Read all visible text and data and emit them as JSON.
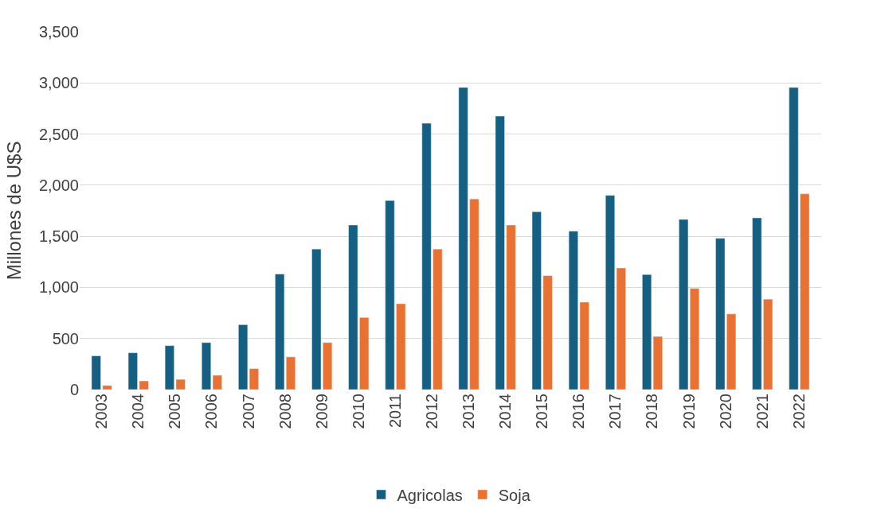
{
  "chart_data": {
    "type": "bar",
    "ylabel": "Millones de U$S",
    "categories": [
      "2003",
      "2004",
      "2005",
      "2006",
      "2007",
      "2008",
      "2009",
      "2010",
      "2011",
      "2012",
      "2013",
      "2014",
      "2015",
      "2016",
      "2017",
      "2018",
      "2019",
      "2020",
      "2021",
      "2022"
    ],
    "series": [
      {
        "name": "Agricolas",
        "color": "#156082",
        "values": [
          330,
          360,
          430,
          460,
          635,
          1130,
          1375,
          1610,
          1850,
          2605,
          2955,
          2675,
          1740,
          1550,
          1900,
          1125,
          1665,
          1480,
          1680,
          2955
        ]
      },
      {
        "name": "Soja",
        "color": "#e97132",
        "values": [
          40,
          85,
          100,
          140,
          205,
          320,
          460,
          705,
          840,
          1375,
          1865,
          1610,
          1115,
          855,
          1190,
          520,
          990,
          740,
          885,
          1915
        ]
      }
    ],
    "ylim": [
      0,
      3500
    ],
    "yticks": [
      {
        "value": 0,
        "label": "0"
      },
      {
        "value": 500,
        "label": "500"
      },
      {
        "value": 1000,
        "label": "1,000"
      },
      {
        "value": 1500,
        "label": "1,500"
      },
      {
        "value": 2000,
        "label": "2,000"
      },
      {
        "value": 2500,
        "label": "2,500"
      },
      {
        "value": 3000,
        "label": "3,000"
      },
      {
        "value": 3500,
        "label": "3,500"
      }
    ],
    "grid": "y",
    "legend": "bottom"
  }
}
